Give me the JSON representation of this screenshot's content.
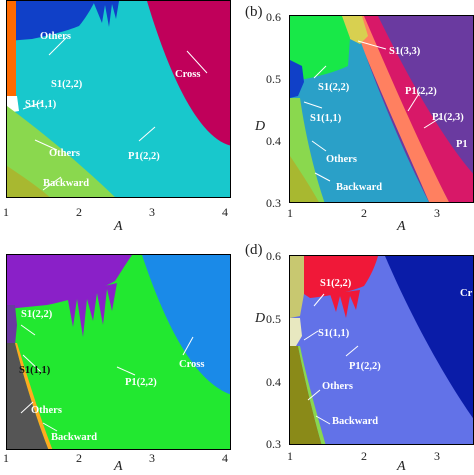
{
  "panels": {
    "a": {
      "xlabel": "A",
      "xticks": [
        "1",
        "2",
        "3",
        "4"
      ],
      "labels": {
        "others_top": "Others",
        "s122": "S1(2,2)",
        "s111": "S1(1,1)",
        "cross": "Cross",
        "p122": "P1(2,2)",
        "others_bottom": "Others",
        "backward": "Backward"
      }
    },
    "b": {
      "tag": "(b)",
      "xlabel": "A",
      "ylabel": "D",
      "xticks": [
        "1",
        "2",
        "3"
      ],
      "yticks": [
        "0.6",
        "0.5",
        "0.4",
        "0.3"
      ],
      "labels": {
        "s133": "S1(3,3)",
        "s122": "S1(2,2)",
        "p122": "P1(2,2)",
        "s111": "S1(1,1)",
        "p123": "P1(2,3)",
        "p1": "P1",
        "others": "Others",
        "backward": "Backward"
      }
    },
    "c": {
      "xlabel": "A",
      "xticks": [
        "1",
        "2",
        "3",
        "4"
      ],
      "labels": {
        "s122": "S1(2,2)",
        "cross": "Cross",
        "s111": "S1(1,1)",
        "p122": "P1(2,2)",
        "others": "Others",
        "backward": "Backward"
      }
    },
    "d": {
      "tag": "(d)",
      "xlabel": "A",
      "ylabel": "D",
      "xticks": [
        "1",
        "2",
        "3"
      ],
      "yticks": [
        "0.6",
        "0.5",
        "0.4",
        "0.3"
      ],
      "labels": {
        "s122": "S1(2,2)",
        "cr": "Cr",
        "s111": "S1(1,1)",
        "p122": "P1(2,2)",
        "others": "Others",
        "backward": "Backward"
      }
    }
  },
  "colors": {
    "cyan": "#18c8cc",
    "magenta": "#c0005a",
    "blue": "#1040c8",
    "orange": "#ff6a00",
    "lightgreen": "#8ad84e",
    "olive": "#a8b830",
    "purple": "#6a3aa0",
    "teal": "#2aa0c8",
    "green": "#22e830",
    "violet": "#8a20c8",
    "gray": "#555555",
    "periwinkle": "#6272e8",
    "red": "#f01838",
    "navy": "#0a1ca8",
    "khaki": "#c8c870",
    "darkolive": "#8a8a18"
  }
}
